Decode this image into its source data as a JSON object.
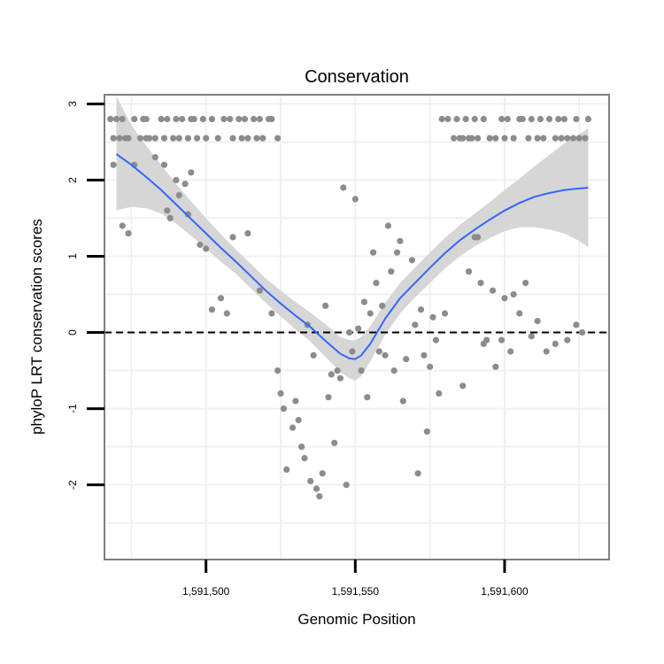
{
  "chart_data": {
    "type": "scatter",
    "title": "Conservation",
    "xlabel": "Genomic Position",
    "ylabel": "phyloP LRT conservation scores",
    "xlim": [
      1591466,
      1591635
    ],
    "ylim": [
      -2.98,
      3.12
    ],
    "xticks": [
      {
        "value": 1591500,
        "label": "1,591,500"
      },
      {
        "value": 1591550,
        "label": "1,591,550"
      },
      {
        "value": 1591600,
        "label": "1,591,600"
      }
    ],
    "yticks": [
      {
        "value": 3,
        "label": "3"
      },
      {
        "value": 2,
        "label": "2"
      },
      {
        "value": 1,
        "label": "1"
      },
      {
        "value": 0,
        "label": "0"
      },
      {
        "value": -1,
        "label": "-1"
      },
      {
        "value": -2,
        "label": "-2"
      }
    ],
    "reference_line": {
      "y": 0,
      "style": "dashed",
      "color": "#000000"
    },
    "grid": true,
    "colors": {
      "points": "#8c8c8c",
      "smooth_line": "#3366ff",
      "confidence_band": "#d4d4d4",
      "panel_border": "#7f7f7f",
      "grid": "#f0f0f0"
    },
    "series": [
      {
        "kind": "points",
        "x": [
          1591468,
          1591469,
          1591470,
          1591471,
          1591472,
          1591473,
          1591474,
          1591476,
          1591478,
          1591479,
          1591480,
          1591481,
          1591483,
          1591485,
          1591486,
          1591487,
          1591489,
          1591490,
          1591491,
          1591492,
          1591494,
          1591495,
          1591496,
          1591497,
          1591499,
          1591500,
          1591502,
          1591504,
          1591506,
          1591508,
          1591509,
          1591511,
          1591512,
          1591513,
          1591514,
          1591516,
          1591517,
          1591518,
          1591519,
          1591521,
          1591522,
          1591524,
          1591579,
          1591581,
          1591583,
          1591584,
          1591585,
          1591586,
          1591587,
          1591588,
          1591589,
          1591590,
          1591591,
          1591593,
          1591595,
          1591597,
          1591599,
          1591600,
          1591601,
          1591603,
          1591605,
          1591606,
          1591608,
          1591609,
          1591611,
          1591612,
          1591613,
          1591615,
          1591617,
          1591618,
          1591619,
          1591620,
          1591621,
          1591623,
          1591624,
          1591625,
          1591627,
          1591628,
          1591469,
          1591472,
          1591474,
          1591476,
          1591480,
          1591483,
          1591486,
          1591487,
          1591488,
          1591490,
          1591491,
          1591493,
          1591494,
          1591495,
          1591498,
          1591500,
          1591502,
          1591505,
          1591507,
          1591509,
          1591514,
          1591518,
          1591522,
          1591524,
          1591525,
          1591526,
          1591527,
          1591529,
          1591530,
          1591531,
          1591532,
          1591533,
          1591534,
          1591535,
          1591536,
          1591537,
          1591538,
          1591539,
          1591540,
          1591541,
          1591542,
          1591543,
          1591544,
          1591545,
          1591546,
          1591547,
          1591548,
          1591549,
          1591550,
          1591551,
          1591552,
          1591553,
          1591554,
          1591555,
          1591556,
          1591557,
          1591558,
          1591559,
          1591560,
          1591561,
          1591562,
          1591563,
          1591564,
          1591565,
          1591566,
          1591567,
          1591569,
          1591570,
          1591571,
          1591572,
          1591573,
          1591574,
          1591575,
          1591576,
          1591577,
          1591578,
          1591580,
          1591586,
          1591588,
          1591590,
          1591591,
          1591592,
          1591593,
          1591594,
          1591596,
          1591597,
          1591599,
          1591600,
          1591602,
          1591603,
          1591605,
          1591607,
          1591609,
          1591611,
          1591614,
          1591617,
          1591621,
          1591624,
          1591626
        ],
        "y": [
          2.8,
          2.55,
          2.8,
          2.55,
          2.8,
          2.55,
          2.55,
          2.8,
          2.55,
          2.8,
          2.55,
          2.55,
          2.55,
          2.8,
          2.55,
          2.8,
          2.55,
          2.8,
          2.55,
          2.8,
          2.55,
          2.8,
          2.8,
          2.55,
          2.8,
          2.55,
          2.8,
          2.55,
          2.8,
          2.8,
          2.55,
          2.8,
          2.55,
          2.8,
          2.55,
          2.8,
          2.55,
          2.8,
          2.55,
          2.8,
          2.8,
          2.55,
          2.8,
          2.8,
          2.55,
          2.8,
          2.55,
          2.55,
          2.8,
          2.55,
          2.55,
          2.8,
          2.55,
          2.8,
          2.55,
          2.55,
          2.8,
          2.55,
          2.8,
          2.55,
          2.8,
          2.8,
          2.55,
          2.8,
          2.55,
          2.8,
          2.55,
          2.8,
          2.55,
          2.8,
          2.55,
          2.8,
          2.55,
          2.55,
          2.8,
          2.55,
          2.55,
          2.8,
          2.2,
          1.4,
          1.3,
          2.2,
          2.8,
          2.3,
          2.2,
          1.6,
          1.5,
          2.0,
          1.8,
          1.95,
          1.55,
          2.1,
          1.15,
          1.1,
          0.3,
          0.45,
          0.25,
          1.25,
          1.3,
          0.55,
          0.25,
          -0.5,
          -0.8,
          -1.0,
          -1.8,
          -1.25,
          -0.9,
          -1.15,
          -1.5,
          -1.65,
          0.1,
          -1.95,
          -0.3,
          -2.05,
          -2.15,
          -1.85,
          0.35,
          -0.85,
          -0.55,
          -1.45,
          -0.5,
          -0.6,
          1.9,
          -2.0,
          0.0,
          -0.25,
          1.75,
          0.05,
          -0.5,
          0.4,
          -0.85,
          0.25,
          1.05,
          0.65,
          -0.25,
          0.35,
          -0.3,
          1.4,
          0.8,
          -0.5,
          1.05,
          1.2,
          -0.9,
          -0.35,
          0.95,
          0.1,
          -1.85,
          0.3,
          -0.3,
          -1.3,
          -0.45,
          0.2,
          -0.1,
          -0.8,
          0.25,
          -0.7,
          0.8,
          1.25,
          1.25,
          0.65,
          -0.15,
          -0.1,
          0.55,
          -0.45,
          -0.1,
          0.45,
          -0.25,
          0.5,
          0.25,
          0.65,
          -0.05,
          0.15,
          -0.25,
          -0.15,
          -0.1,
          0.1,
          0.0
        ]
      },
      {
        "kind": "smooth",
        "x": [
          1591470,
          1591475,
          1591480,
          1591485,
          1591490,
          1591495,
          1591500,
          1591505,
          1591510,
          1591515,
          1591520,
          1591525,
          1591530,
          1591535,
          1591540,
          1591545,
          1591548,
          1591550,
          1591552,
          1591555,
          1591560,
          1591565,
          1591570,
          1591575,
          1591580,
          1591585,
          1591590,
          1591595,
          1591600,
          1591605,
          1591610,
          1591615,
          1591620,
          1591625,
          1591628
        ],
        "y": [
          2.34,
          2.2,
          2.04,
          1.87,
          1.68,
          1.49,
          1.3,
          1.11,
          0.93,
          0.74,
          0.55,
          0.38,
          0.22,
          0.07,
          -0.11,
          -0.28,
          -0.34,
          -0.35,
          -0.3,
          -0.15,
          0.18,
          0.45,
          0.65,
          0.85,
          1.04,
          1.21,
          1.35,
          1.48,
          1.6,
          1.7,
          1.78,
          1.83,
          1.87,
          1.89,
          1.9
        ]
      },
      {
        "kind": "confidence_band",
        "x": [
          1591470,
          1591475,
          1591480,
          1591485,
          1591490,
          1591495,
          1591500,
          1591505,
          1591510,
          1591515,
          1591520,
          1591525,
          1591530,
          1591535,
          1591540,
          1591545,
          1591548,
          1591550,
          1591552,
          1591555,
          1591560,
          1591565,
          1591570,
          1591575,
          1591580,
          1591585,
          1591590,
          1591595,
          1591600,
          1591605,
          1591610,
          1591615,
          1591620,
          1591625,
          1591628
        ],
        "upper": [
          3.1,
          2.72,
          2.45,
          2.2,
          1.95,
          1.72,
          1.5,
          1.29,
          1.09,
          0.9,
          0.71,
          0.55,
          0.4,
          0.26,
          0.11,
          -0.06,
          -0.1,
          -0.1,
          -0.06,
          0.08,
          0.39,
          0.65,
          0.85,
          1.05,
          1.24,
          1.41,
          1.56,
          1.71,
          1.87,
          2.02,
          2.18,
          2.33,
          2.48,
          2.6,
          2.68
        ],
        "lower": [
          1.6,
          1.65,
          1.63,
          1.56,
          1.43,
          1.27,
          1.1,
          0.93,
          0.77,
          0.58,
          0.39,
          0.21,
          0.04,
          -0.12,
          -0.32,
          -0.52,
          -0.6,
          -0.63,
          -0.57,
          -0.38,
          -0.03,
          0.25,
          0.46,
          0.65,
          0.84,
          1.0,
          1.13,
          1.24,
          1.33,
          1.38,
          1.38,
          1.35,
          1.3,
          1.2,
          1.12
        ]
      }
    ]
  }
}
